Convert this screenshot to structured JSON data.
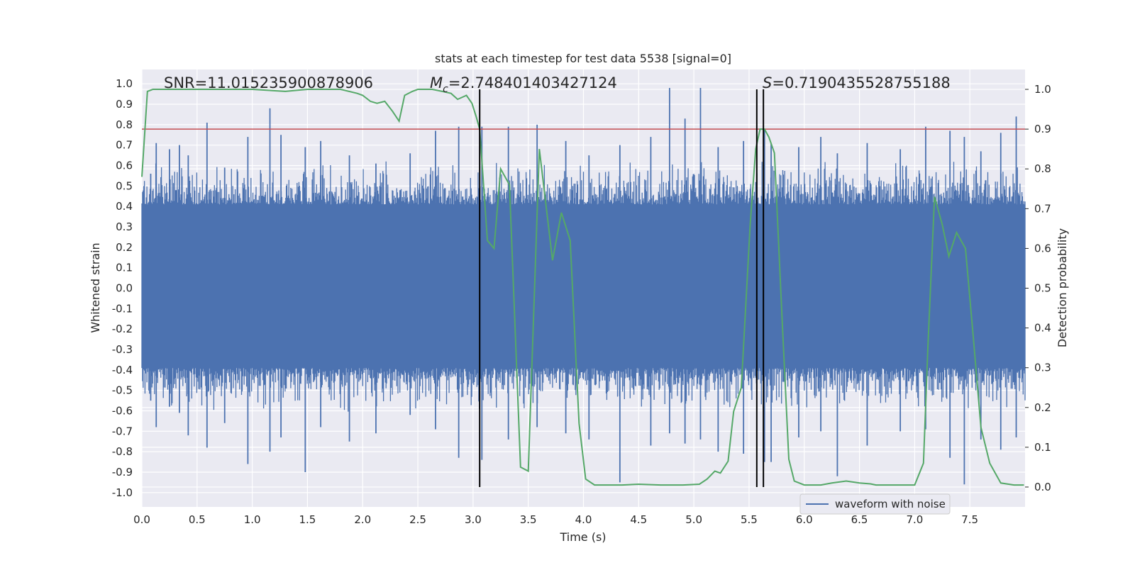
{
  "chart_data": {
    "type": "line",
    "title": "stats at each timestep for test data 5538 [signal=0]",
    "xlabel": "Time (s)",
    "ylabel": "Whitened strain",
    "y2label": "Detection probability",
    "xlim": [
      0.0,
      8.0
    ],
    "ylim": [
      -1.07,
      1.07
    ],
    "y2lim": [
      -0.05,
      1.05
    ],
    "x_ticks": [
      "0.0",
      "0.5",
      "1.0",
      "1.5",
      "2.0",
      "2.5",
      "3.0",
      "3.5",
      "4.0",
      "4.5",
      "5.0",
      "5.5",
      "6.0",
      "6.5",
      "7.0",
      "7.5"
    ],
    "y_ticks": [
      "1.0",
      "0.9",
      "0.8",
      "0.7",
      "0.6",
      "0.5",
      "0.4",
      "0.3",
      "0.2",
      "0.1",
      "0.0",
      "-0.1",
      "-0.2",
      "-0.3",
      "-0.4",
      "-0.5",
      "-0.6",
      "-0.7",
      "-0.8",
      "-0.9",
      "-1.0"
    ],
    "y2_ticks": [
      "1.0",
      "0.9",
      "0.8",
      "0.7",
      "0.6",
      "0.5",
      "0.4",
      "0.3",
      "0.2",
      "0.1",
      "0.0"
    ],
    "grid": true,
    "legend": {
      "entries": [
        "waveform with noise"
      ],
      "placement": "lower-right"
    },
    "annotations": {
      "snr": "SNR=11.015235900878906",
      "mc_symbol": "M",
      "mc_sub": "c",
      "mc_value": "=2.748401403427124",
      "s_symbol": "S",
      "s_value": "=0.7190435528755188"
    },
    "threshold": {
      "y2": 0.9,
      "color": "#c44e52"
    },
    "vlines": [
      3.06,
      5.57,
      5.63
    ],
    "waveform": {
      "name": "waveform with noise",
      "color": "#4c72b0",
      "envelope": 0.41,
      "spikes": [
        {
          "x": 0.08,
          "ymax": 0.56,
          "ymin": -0.55
        },
        {
          "x": 0.13,
          "ymax": 0.71,
          "ymin": -0.68
        },
        {
          "x": 0.25,
          "ymax": 0.68,
          "ymin": -0.58
        },
        {
          "x": 0.34,
          "ymax": 0.7,
          "ymin": -0.61
        },
        {
          "x": 0.42,
          "ymax": 0.65,
          "ymin": -0.72
        },
        {
          "x": 0.59,
          "ymax": 0.81,
          "ymin": -0.78
        },
        {
          "x": 0.75,
          "ymax": 0.59,
          "ymin": -0.66
        },
        {
          "x": 0.96,
          "ymax": 0.74,
          "ymin": -0.86
        },
        {
          "x": 1.16,
          "ymax": 0.88,
          "ymin": -0.8
        },
        {
          "x": 1.26,
          "ymax": 0.75,
          "ymin": -0.73
        },
        {
          "x": 1.48,
          "ymax": 0.69,
          "ymin": -0.9
        },
        {
          "x": 1.62,
          "ymax": 0.72,
          "ymin": -0.68
        },
        {
          "x": 1.88,
          "ymax": 0.65,
          "ymin": -0.75
        },
        {
          "x": 2.12,
          "ymax": 0.61,
          "ymin": -0.71
        },
        {
          "x": 2.43,
          "ymax": 0.66,
          "ymin": -0.62
        },
        {
          "x": 2.66,
          "ymax": 0.77,
          "ymin": -0.69
        },
        {
          "x": 2.87,
          "ymax": 0.79,
          "ymin": -0.83
        },
        {
          "x": 3.08,
          "ymax": 0.79,
          "ymin": -0.84
        },
        {
          "x": 3.32,
          "ymax": 0.79,
          "ymin": -0.74
        },
        {
          "x": 3.58,
          "ymax": 0.8,
          "ymin": -0.68
        },
        {
          "x": 3.84,
          "ymax": 0.72,
          "ymin": -0.71
        },
        {
          "x": 4.05,
          "ymax": 0.65,
          "ymin": -0.74
        },
        {
          "x": 4.33,
          "ymax": 0.7,
          "ymin": -0.95
        },
        {
          "x": 4.61,
          "ymax": 0.74,
          "ymin": -0.77
        },
        {
          "x": 4.78,
          "ymax": 0.98,
          "ymin": -0.71
        },
        {
          "x": 4.92,
          "ymax": 0.83,
          "ymin": -0.76
        },
        {
          "x": 5.06,
          "ymax": 0.98,
          "ymin": -0.74
        },
        {
          "x": 5.22,
          "ymax": 0.69,
          "ymin": -0.8
        },
        {
          "x": 5.45,
          "ymax": 0.72,
          "ymin": -0.81
        },
        {
          "x": 5.64,
          "ymax": 0.78,
          "ymin": -0.85
        },
        {
          "x": 5.7,
          "ymax": 0.71,
          "ymin": -0.85
        },
        {
          "x": 5.95,
          "ymax": 0.69,
          "ymin": -0.73
        },
        {
          "x": 6.15,
          "ymax": 0.74,
          "ymin": -0.7
        },
        {
          "x": 6.3,
          "ymax": 0.66,
          "ymin": -0.92
        },
        {
          "x": 6.57,
          "ymax": 0.71,
          "ymin": -0.77
        },
        {
          "x": 6.87,
          "ymax": 0.68,
          "ymin": -0.7
        },
        {
          "x": 7.1,
          "ymax": 0.79,
          "ymin": -0.69
        },
        {
          "x": 7.32,
          "ymax": 0.77,
          "ymin": -0.83
        },
        {
          "x": 7.45,
          "ymax": 0.74,
          "ymin": -0.96
        },
        {
          "x": 7.6,
          "ymax": 0.67,
          "ymin": -0.74
        },
        {
          "x": 7.78,
          "ymax": 0.76,
          "ymin": -0.79
        },
        {
          "x": 7.92,
          "ymax": 0.84,
          "ymin": -0.73
        }
      ]
    },
    "detection_probability": {
      "color": "#55a868",
      "x": [
        0.0,
        0.05,
        0.1,
        0.2,
        0.3,
        0.5,
        0.8,
        1.0,
        1.3,
        1.5,
        1.8,
        1.95,
        2.0,
        2.07,
        2.13,
        2.2,
        2.27,
        2.33,
        2.38,
        2.45,
        2.5,
        2.55,
        2.63,
        2.72,
        2.8,
        2.86,
        2.94,
        2.99,
        3.03,
        3.06,
        3.13,
        3.19,
        3.25,
        3.33,
        3.43,
        3.5,
        3.6,
        3.72,
        3.8,
        3.88,
        3.96,
        4.02,
        4.1,
        4.2,
        4.35,
        4.5,
        4.7,
        4.9,
        5.05,
        5.12,
        5.19,
        5.24,
        5.31,
        5.36,
        5.43,
        5.51,
        5.56,
        5.6,
        5.64,
        5.68,
        5.73,
        5.8,
        5.86,
        5.91,
        6.0,
        6.15,
        6.25,
        6.38,
        6.5,
        6.6,
        6.65,
        6.75,
        6.85,
        7.0,
        7.08,
        7.12,
        7.18,
        7.25,
        7.31,
        7.38,
        7.46,
        7.53,
        7.6,
        7.68,
        7.78,
        7.9,
        7.99
      ],
      "y": [
        0.78,
        0.995,
        1.0,
        1.0,
        1.0,
        1.0,
        1.0,
        1.0,
        0.995,
        1.0,
        1.0,
        0.99,
        0.985,
        0.97,
        0.965,
        0.97,
        0.945,
        0.92,
        0.985,
        0.995,
        1.0,
        1.0,
        1.0,
        0.995,
        0.99,
        0.975,
        0.985,
        0.965,
        0.93,
        0.9,
        0.62,
        0.6,
        0.8,
        0.76,
        0.05,
        0.04,
        0.85,
        0.57,
        0.69,
        0.62,
        0.16,
        0.02,
        0.005,
        0.005,
        0.005,
        0.007,
        0.005,
        0.005,
        0.007,
        0.02,
        0.04,
        0.035,
        0.065,
        0.19,
        0.25,
        0.66,
        0.85,
        0.9,
        0.9,
        0.88,
        0.84,
        0.42,
        0.07,
        0.015,
        0.005,
        0.005,
        0.01,
        0.015,
        0.01,
        0.008,
        0.005,
        0.005,
        0.005,
        0.005,
        0.06,
        0.35,
        0.73,
        0.66,
        0.58,
        0.64,
        0.6,
        0.38,
        0.15,
        0.06,
        0.01,
        0.005,
        0.005
      ]
    }
  }
}
